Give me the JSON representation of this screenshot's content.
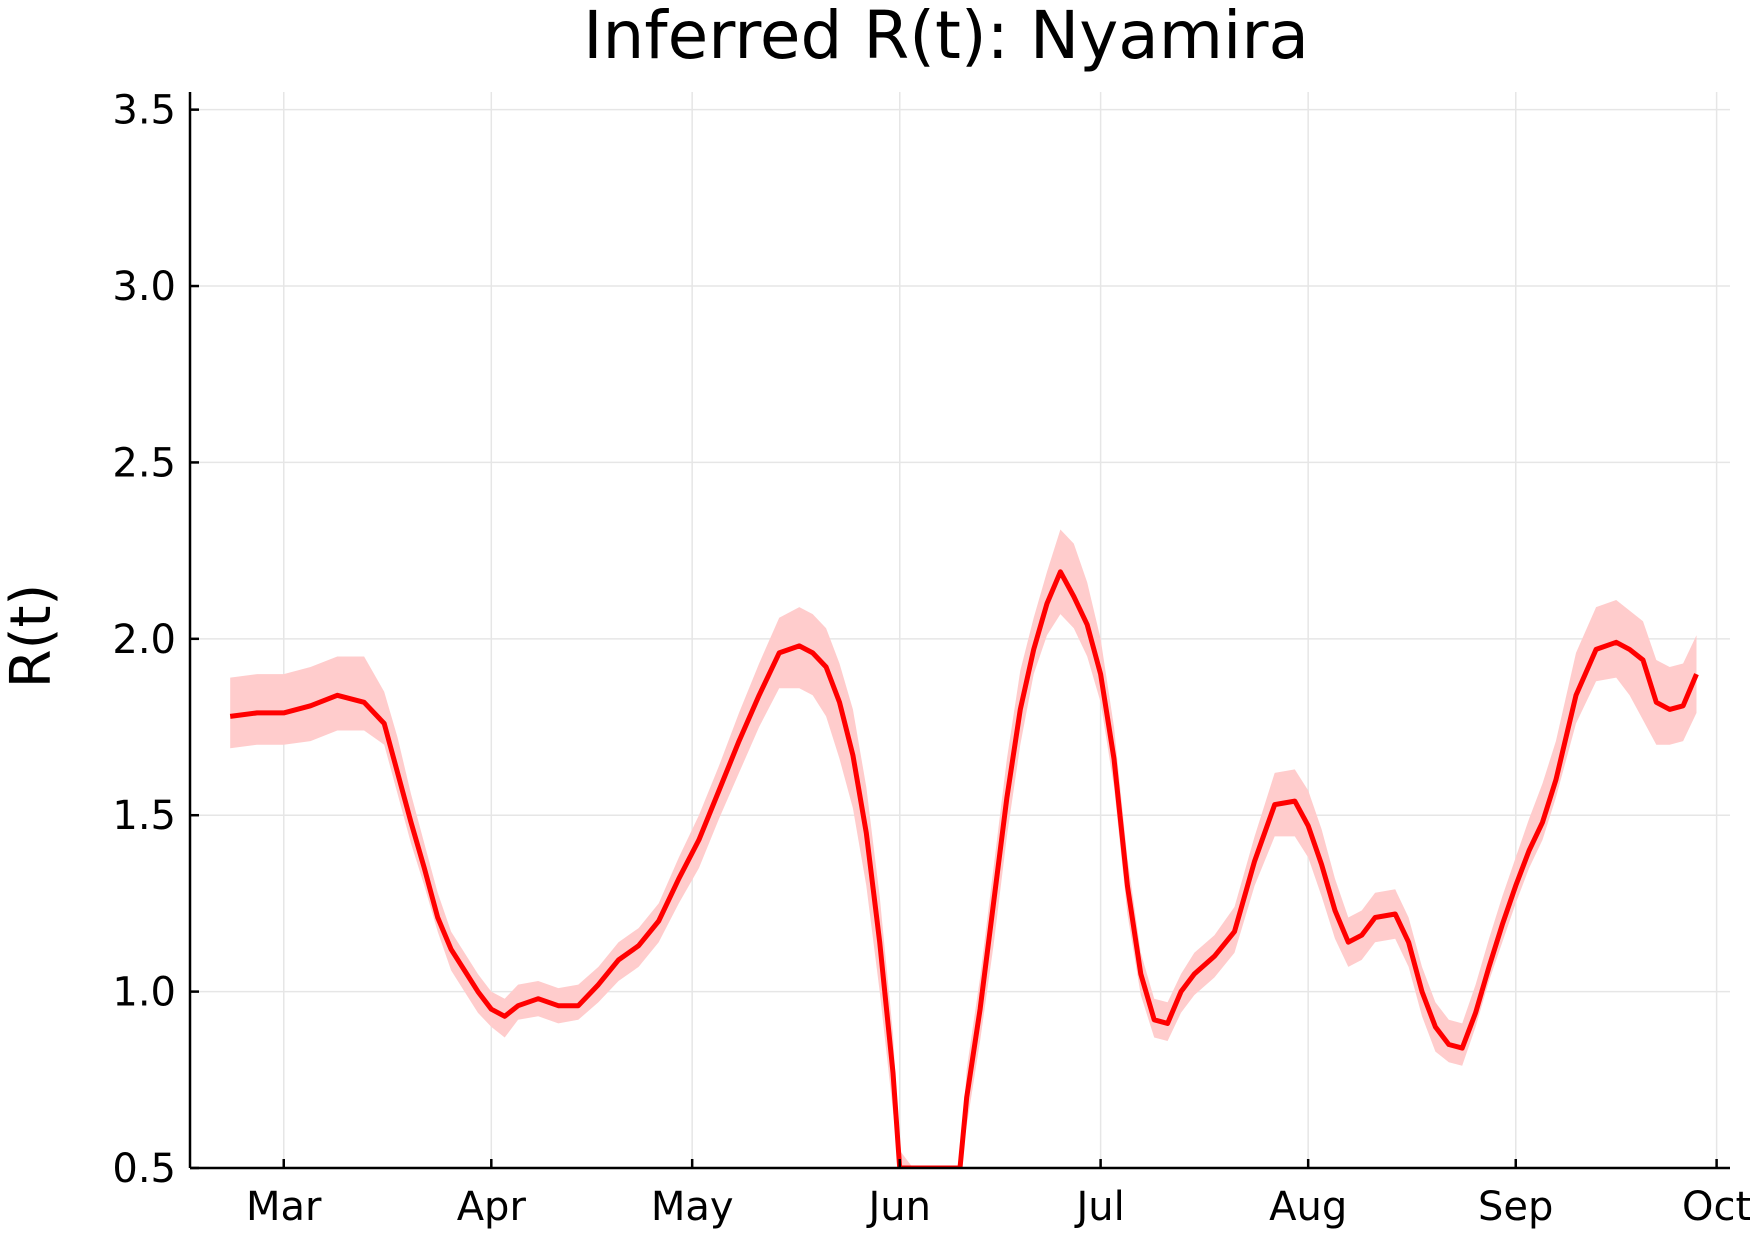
{
  "chart_data": {
    "type": "line",
    "title": "Inferred R(t): Nyamira",
    "xlabel": "",
    "ylabel": "R(t)",
    "ylim": [
      0.5,
      3.55
    ],
    "xlim": [
      "2020-02-16",
      "2020-10-03"
    ],
    "yticks": [
      {
        "value": 0.5,
        "label": "0.5"
      },
      {
        "value": 1.0,
        "label": "1.0"
      },
      {
        "value": 1.5,
        "label": "1.5"
      },
      {
        "value": 2.0,
        "label": "2.0"
      },
      {
        "value": 2.5,
        "label": "2.5"
      },
      {
        "value": 3.0,
        "label": "3.0"
      },
      {
        "value": 3.5,
        "label": "3.5"
      }
    ],
    "xticks": [
      {
        "date": "2020-03-01",
        "label": "Mar"
      },
      {
        "date": "2020-04-01",
        "label": "Apr"
      },
      {
        "date": "2020-05-01",
        "label": "May"
      },
      {
        "date": "2020-06-01",
        "label": "Jun"
      },
      {
        "date": "2020-07-01",
        "label": "Jul"
      },
      {
        "date": "2020-08-01",
        "label": "Aug"
      },
      {
        "date": "2020-09-01",
        "label": "Sep"
      },
      {
        "date": "2020-10-01",
        "label": "Oct"
      }
    ],
    "grid": true,
    "legend": "none",
    "line_color": "#ff0000",
    "band_color": "#ffcccc",
    "series": [
      {
        "x": [
          "2020-02-22",
          "2020-02-26",
          "2020-03-01",
          "2020-03-05",
          "2020-03-09",
          "2020-03-13",
          "2020-03-16",
          "2020-03-18",
          "2020-03-20",
          "2020-03-22",
          "2020-03-24",
          "2020-03-26",
          "2020-03-28",
          "2020-03-30",
          "2020-04-01",
          "2020-04-03",
          "2020-04-05",
          "2020-04-08",
          "2020-04-11",
          "2020-04-14",
          "2020-04-17",
          "2020-04-20",
          "2020-04-23",
          "2020-04-26",
          "2020-04-29",
          "2020-05-02",
          "2020-05-05",
          "2020-05-08",
          "2020-05-11",
          "2020-05-14",
          "2020-05-17",
          "2020-05-19",
          "2020-05-21",
          "2020-05-23",
          "2020-05-25",
          "2020-05-27",
          "2020-05-29",
          "2020-05-31",
          "2020-06-01",
          "2020-06-03",
          "2020-06-04",
          "2020-06-10",
          "2020-06-11",
          "2020-06-13",
          "2020-06-15",
          "2020-06-17",
          "2020-06-19",
          "2020-06-21",
          "2020-06-23",
          "2020-06-25",
          "2020-06-27",
          "2020-06-29",
          "2020-07-01",
          "2020-07-03",
          "2020-07-05",
          "2020-07-07",
          "2020-07-09",
          "2020-07-11",
          "2020-07-13",
          "2020-07-15",
          "2020-07-18",
          "2020-07-21",
          "2020-07-24",
          "2020-07-27",
          "2020-07-30",
          "2020-08-01",
          "2020-08-03",
          "2020-08-05",
          "2020-08-07",
          "2020-08-09",
          "2020-08-11",
          "2020-08-14",
          "2020-08-16",
          "2020-08-18",
          "2020-08-20",
          "2020-08-22",
          "2020-08-24",
          "2020-08-26",
          "2020-08-28",
          "2020-08-30",
          "2020-09-01",
          "2020-09-03",
          "2020-09-05",
          "2020-09-07",
          "2020-09-10",
          "2020-09-13",
          "2020-09-16",
          "2020-09-18",
          "2020-09-20",
          "2020-09-22",
          "2020-09-24",
          "2020-09-26",
          "2020-09-28"
        ],
        "values": [
          1.78,
          1.79,
          1.79,
          1.81,
          1.84,
          1.82,
          1.76,
          1.62,
          1.48,
          1.35,
          1.21,
          1.12,
          1.06,
          1.0,
          0.95,
          0.93,
          0.96,
          0.98,
          0.96,
          0.96,
          1.02,
          1.09,
          1.13,
          1.2,
          1.32,
          1.43,
          1.57,
          1.71,
          1.84,
          1.96,
          1.98,
          1.96,
          1.92,
          1.82,
          1.67,
          1.45,
          1.14,
          0.77,
          0.5,
          0.5,
          0.5,
          0.5,
          0.7,
          0.95,
          1.25,
          1.55,
          1.8,
          1.97,
          2.1,
          2.19,
          2.12,
          2.04,
          1.9,
          1.66,
          1.3,
          1.05,
          0.92,
          0.91,
          1.0,
          1.05,
          1.1,
          1.17,
          1.37,
          1.53,
          1.54,
          1.47,
          1.36,
          1.23,
          1.14,
          1.16,
          1.21,
          1.22,
          1.14,
          1.0,
          0.9,
          0.85,
          0.84,
          0.94,
          1.07,
          1.19,
          1.3,
          1.4,
          1.48,
          1.6,
          1.84,
          1.97,
          1.99,
          1.97,
          1.94,
          1.82,
          1.8,
          1.81,
          1.9
        ],
        "lower": [
          1.69,
          1.7,
          1.7,
          1.71,
          1.74,
          1.74,
          1.7,
          1.56,
          1.42,
          1.3,
          1.17,
          1.06,
          1.0,
          0.94,
          0.9,
          0.87,
          0.92,
          0.93,
          0.91,
          0.92,
          0.97,
          1.03,
          1.07,
          1.14,
          1.25,
          1.35,
          1.49,
          1.62,
          1.75,
          1.86,
          1.86,
          1.84,
          1.78,
          1.66,
          1.52,
          1.3,
          1.0,
          0.66,
          0.5,
          0.5,
          0.5,
          0.5,
          0.62,
          0.86,
          1.13,
          1.44,
          1.7,
          1.9,
          2.01,
          2.07,
          2.03,
          1.95,
          1.82,
          1.58,
          1.22,
          0.99,
          0.87,
          0.86,
          0.94,
          0.99,
          1.04,
          1.11,
          1.3,
          1.44,
          1.44,
          1.38,
          1.27,
          1.15,
          1.07,
          1.09,
          1.14,
          1.15,
          1.07,
          0.93,
          0.83,
          0.8,
          0.79,
          0.9,
          1.03,
          1.14,
          1.25,
          1.35,
          1.43,
          1.55,
          1.76,
          1.88,
          1.89,
          1.84,
          1.77,
          1.7,
          1.7,
          1.71,
          1.79
        ],
        "upper": [
          1.89,
          1.9,
          1.9,
          1.92,
          1.95,
          1.95,
          1.85,
          1.72,
          1.56,
          1.42,
          1.28,
          1.17,
          1.11,
          1.05,
          1.0,
          0.98,
          1.02,
          1.03,
          1.01,
          1.02,
          1.07,
          1.14,
          1.18,
          1.25,
          1.38,
          1.5,
          1.64,
          1.79,
          1.93,
          2.06,
          2.09,
          2.07,
          2.03,
          1.93,
          1.8,
          1.58,
          1.27,
          0.88,
          0.55,
          0.5,
          0.5,
          0.5,
          0.78,
          1.04,
          1.35,
          1.66,
          1.91,
          2.06,
          2.19,
          2.31,
          2.27,
          2.16,
          2.0,
          1.75,
          1.38,
          1.11,
          0.98,
          0.97,
          1.05,
          1.11,
          1.16,
          1.24,
          1.44,
          1.62,
          1.63,
          1.57,
          1.46,
          1.32,
          1.21,
          1.23,
          1.28,
          1.29,
          1.21,
          1.07,
          0.97,
          0.92,
          0.91,
          1.02,
          1.15,
          1.27,
          1.38,
          1.49,
          1.59,
          1.71,
          1.96,
          2.09,
          2.11,
          2.08,
          2.05,
          1.94,
          1.92,
          1.93,
          2.01
        ]
      }
    ]
  }
}
